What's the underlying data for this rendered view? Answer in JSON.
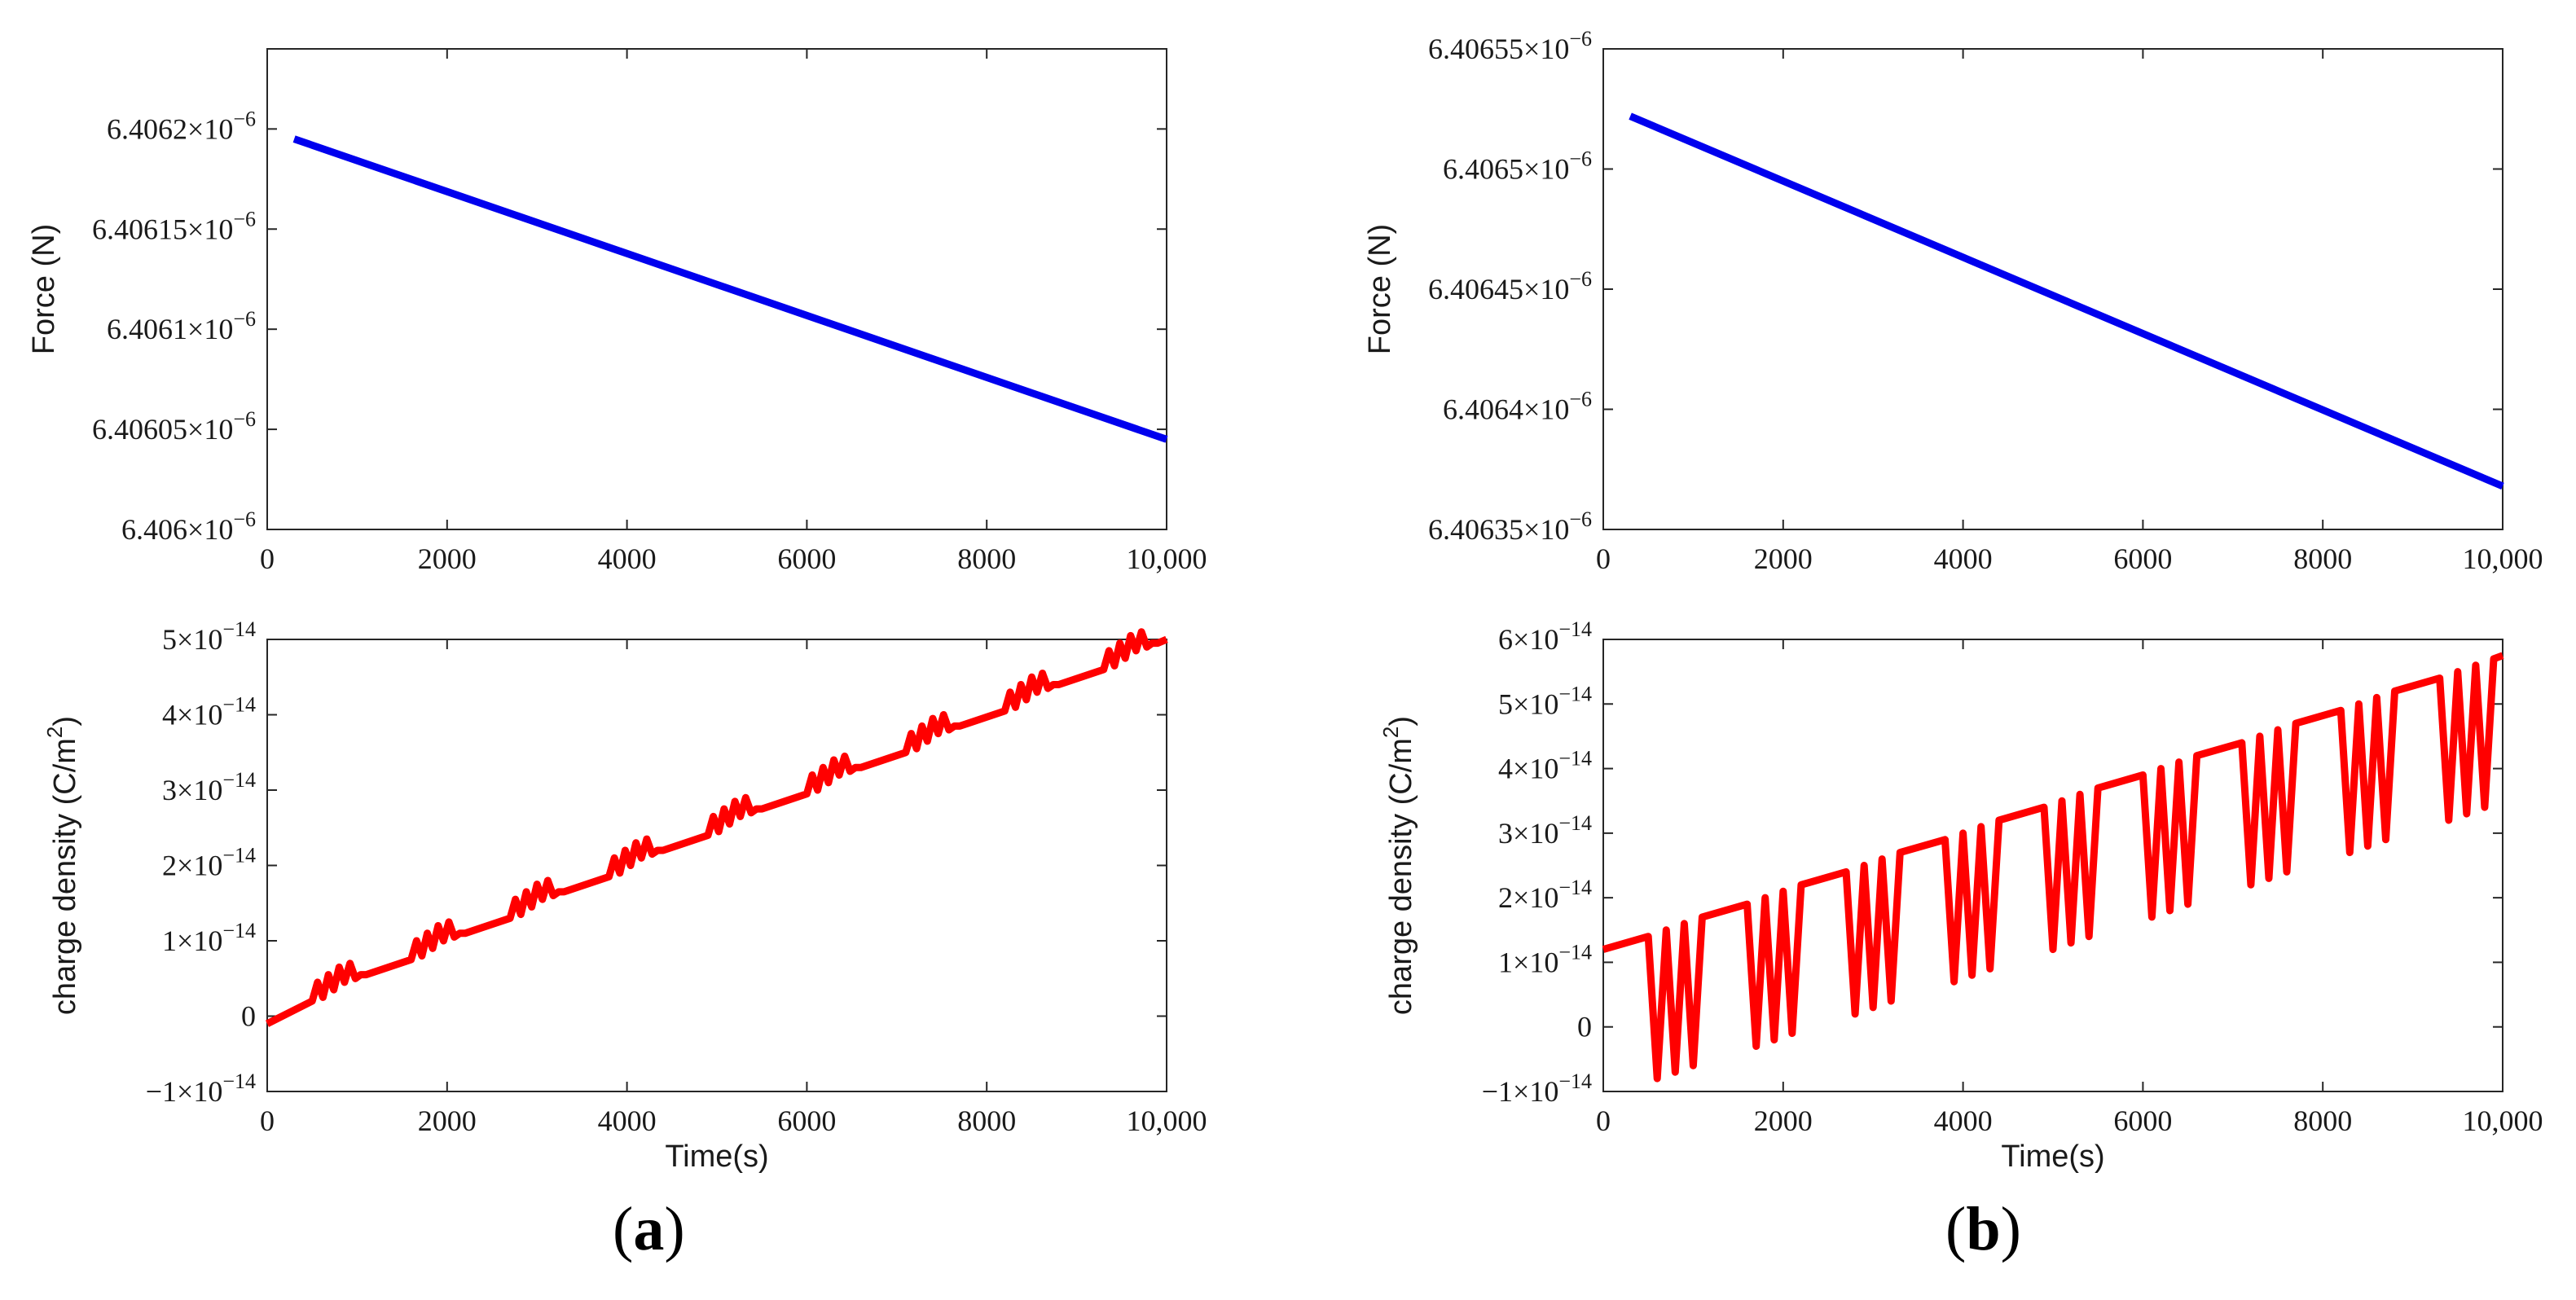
{
  "figure": {
    "panel_labels": [
      {
        "open": "(",
        "letter": "a",
        "close": ")"
      },
      {
        "open": "(",
        "letter": "b",
        "close": ")"
      }
    ]
  },
  "chart_data": [
    {
      "id": "a-force",
      "panel": "a",
      "type": "line",
      "title": "",
      "xlabel": "",
      "ylabel": "Force (N)",
      "xlim": [
        0,
        10000
      ],
      "ylim": [
        6.406e-06,
        6.40624e-06
      ],
      "xticks": [
        0,
        2000,
        4000,
        6000,
        8000,
        10000
      ],
      "xtick_labels": [
        "0",
        "2000",
        "4000",
        "6000",
        "8000",
        "10,000"
      ],
      "yticks": [
        6.406e-06,
        6.40605e-06,
        6.4061e-06,
        6.40615e-06,
        6.4062e-06
      ],
      "ytick_mantissas": [
        "6.406",
        "6.40605",
        "6.4061",
        "6.40615",
        "6.4062"
      ],
      "ytick_exponent": "−6",
      "color": "#0000ee",
      "series": [
        {
          "name": "Force",
          "x": [
            300,
            10000
          ],
          "y": [
            6.406195e-06,
            6.406045e-06
          ]
        }
      ]
    },
    {
      "id": "a-charge",
      "panel": "a",
      "type": "line",
      "title": "",
      "xlabel": "Time(s)",
      "ylabel": "charge density (C/m",
      "ylabel_sup": "2",
      "ylabel_end": ")",
      "xlim": [
        0,
        10000
      ],
      "ylim": [
        -1e-14,
        5e-14
      ],
      "xticks": [
        0,
        2000,
        4000,
        6000,
        8000,
        10000
      ],
      "xtick_labels": [
        "0",
        "2000",
        "4000",
        "6000",
        "8000",
        "10,000"
      ],
      "yticks": [
        -1e-14,
        0,
        1e-14,
        2e-14,
        3e-14,
        4e-14,
        5e-14
      ],
      "ytick_mantissas": [
        "−1×10",
        "0",
        "1×10",
        "2×10",
        "3×10",
        "4×10",
        "5×10"
      ],
      "ytick_exponents": [
        "−14",
        "",
        "−14",
        "−14",
        "−14",
        "−14",
        "−14"
      ],
      "color": "#ff0000",
      "series": [
        {
          "name": "charge density",
          "x": [
            0,
            500,
            560,
            620,
            680,
            740,
            800,
            860,
            920,
            980,
            1040,
            1100,
            1600,
            1660,
            1720,
            1780,
            1840,
            1900,
            1960,
            2020,
            2080,
            2140,
            2200,
            2700,
            2760,
            2820,
            2880,
            2940,
            3000,
            3060,
            3120,
            3180,
            3240,
            3300,
            3800,
            3860,
            3920,
            3980,
            4040,
            4100,
            4160,
            4220,
            4280,
            4340,
            4400,
            4900,
            4960,
            5020,
            5080,
            5140,
            5200,
            5260,
            5320,
            5380,
            5440,
            5500,
            6000,
            6060,
            6120,
            6180,
            6240,
            6300,
            6360,
            6420,
            6480,
            6540,
            6600,
            7100,
            7160,
            7220,
            7280,
            7340,
            7400,
            7460,
            7520,
            7580,
            7640,
            7700,
            8200,
            8260,
            8320,
            8380,
            8440,
            8500,
            8560,
            8620,
            8680,
            8740,
            8800,
            9300,
            9360,
            9420,
            9480,
            9540,
            9600,
            9660,
            9720,
            9780,
            9840,
            9900,
            10000
          ],
          "y": [
            -1e-15,
            2e-15,
            4.5e-15,
            2.5e-15,
            5.5e-15,
            3.5e-15,
            6.5e-15,
            4.5e-15,
            7e-15,
            5e-15,
            5.5e-15,
            5.5e-15,
            7.5e-15,
            1e-14,
            8e-15,
            1.1e-14,
            9e-15,
            1.2e-14,
            1e-14,
            1.25e-14,
            1.05e-14,
            1.1e-14,
            1.1e-14,
            1.3e-14,
            1.55e-14,
            1.35e-14,
            1.65e-14,
            1.45e-14,
            1.75e-14,
            1.55e-14,
            1.8e-14,
            1.6e-14,
            1.65e-14,
            1.65e-14,
            1.85e-14,
            2.1e-14,
            1.9e-14,
            2.2e-14,
            2e-14,
            2.3e-14,
            2.1e-14,
            2.35e-14,
            2.15e-14,
            2.2e-14,
            2.2e-14,
            2.4e-14,
            2.65e-14,
            2.45e-14,
            2.75e-14,
            2.55e-14,
            2.85e-14,
            2.65e-14,
            2.9e-14,
            2.7e-14,
            2.75e-14,
            2.75e-14,
            2.95e-14,
            3.2e-14,
            3e-14,
            3.3e-14,
            3.1e-14,
            3.4e-14,
            3.2e-14,
            3.45e-14,
            3.25e-14,
            3.3e-14,
            3.3e-14,
            3.5e-14,
            3.75e-14,
            3.55e-14,
            3.85e-14,
            3.65e-14,
            3.95e-14,
            3.75e-14,
            4e-14,
            3.8e-14,
            3.85e-14,
            3.85e-14,
            4.05e-14,
            4.3e-14,
            4.1e-14,
            4.4e-14,
            4.2e-14,
            4.5e-14,
            4.3e-14,
            4.55e-14,
            4.35e-14,
            4.4e-14,
            4.4e-14,
            4.6e-14,
            4.85e-14,
            4.65e-14,
            4.95e-14,
            4.75e-14,
            5.05e-14,
            4.85e-14,
            5.1e-14,
            4.9e-14,
            4.95e-14,
            4.95e-14,
            5e-14
          ]
        }
      ]
    },
    {
      "id": "b-force",
      "panel": "b",
      "type": "line",
      "title": "",
      "xlabel": "",
      "ylabel": "Force (N)",
      "xlim": [
        0,
        10000
      ],
      "ylim": [
        6.40635e-06,
        6.40655e-06
      ],
      "xticks": [
        0,
        2000,
        4000,
        6000,
        8000,
        10000
      ],
      "xtick_labels": [
        "0",
        "2000",
        "4000",
        "6000",
        "8000",
        "10,000"
      ],
      "yticks": [
        6.40635e-06,
        6.4064e-06,
        6.40645e-06,
        6.4065e-06,
        6.40655e-06
      ],
      "ytick_mantissas": [
        "6.40635",
        "6.4064",
        "6.40645",
        "6.4065",
        "6.40655"
      ],
      "ytick_exponent": "−6",
      "color": "#0000ee",
      "series": [
        {
          "name": "Force",
          "x": [
            300,
            10000
          ],
          "y": [
            6.406522e-06,
            6.406368e-06
          ]
        }
      ]
    },
    {
      "id": "b-charge",
      "panel": "b",
      "type": "line",
      "title": "",
      "xlabel": "Time(s)",
      "ylabel": "charge density (C/m",
      "ylabel_sup": "2",
      "ylabel_end": ")",
      "xlim": [
        0,
        10000
      ],
      "ylim": [
        -1e-14,
        6e-14
      ],
      "xticks": [
        0,
        2000,
        4000,
        6000,
        8000,
        10000
      ],
      "xtick_labels": [
        "0",
        "2000",
        "4000",
        "6000",
        "8000",
        "10,000"
      ],
      "yticks": [
        -1e-14,
        0,
        1e-14,
        2e-14,
        3e-14,
        4e-14,
        5e-14,
        6e-14
      ],
      "ytick_mantissas": [
        "−1×10",
        "0",
        "1×10",
        "2×10",
        "3×10",
        "4×10",
        "5×10",
        "6×10"
      ],
      "ytick_exponents": [
        "−14",
        "",
        "−14",
        "−14",
        "−14",
        "−14",
        "−14",
        "−14"
      ],
      "color": "#ff0000",
      "series": [
        {
          "name": "charge density",
          "x": [
            0,
            500,
            600,
            700,
            800,
            900,
            1000,
            1100,
            1600,
            1700,
            1800,
            1900,
            2000,
            2100,
            2200,
            2700,
            2800,
            2900,
            3000,
            3100,
            3200,
            3300,
            3800,
            3900,
            4000,
            4100,
            4200,
            4300,
            4400,
            4900,
            5000,
            5100,
            5200,
            5300,
            5400,
            5500,
            6000,
            6100,
            6200,
            6300,
            6400,
            6500,
            6600,
            7100,
            7200,
            7300,
            7400,
            7500,
            7600,
            7700,
            8200,
            8300,
            8400,
            8500,
            8600,
            8700,
            8800,
            9300,
            9400,
            9500,
            9600,
            9700,
            9800,
            9900,
            10000
          ],
          "y": [
            1.2e-14,
            1.4e-14,
            -8e-15,
            1.5e-14,
            -7e-15,
            1.6e-14,
            -6e-15,
            1.7e-14,
            1.9e-14,
            -3e-15,
            2e-14,
            -2e-15,
            2.1e-14,
            -1e-15,
            2.2e-14,
            2.4e-14,
            2e-15,
            2.5e-14,
            3e-15,
            2.6e-14,
            4e-15,
            2.7e-14,
            2.9e-14,
            7e-15,
            3e-14,
            8e-15,
            3.1e-14,
            9e-15,
            3.2e-14,
            3.4e-14,
            1.2e-14,
            3.5e-14,
            1.3e-14,
            3.6e-14,
            1.4e-14,
            3.7e-14,
            3.9e-14,
            1.7e-14,
            4e-14,
            1.8e-14,
            4.1e-14,
            1.9e-14,
            4.2e-14,
            4.4e-14,
            2.2e-14,
            4.5e-14,
            2.3e-14,
            4.6e-14,
            2.4e-14,
            4.7e-14,
            4.9e-14,
            2.7e-14,
            5e-14,
            2.8e-14,
            5.1e-14,
            2.9e-14,
            5.2e-14,
            5.4e-14,
            3.2e-14,
            5.5e-14,
            3.3e-14,
            5.6e-14,
            3.4e-14,
            5.7e-14,
            5.75e-14
          ]
        }
      ]
    }
  ]
}
